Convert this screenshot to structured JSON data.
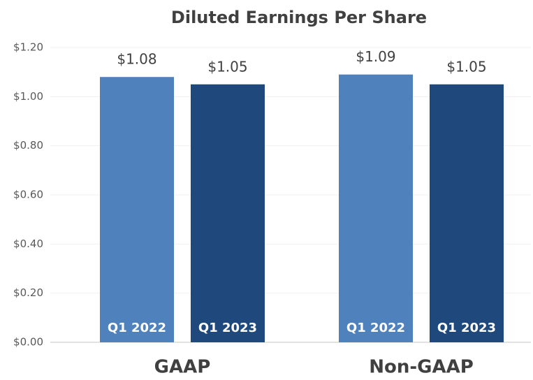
{
  "chart_data": {
    "type": "bar",
    "title": "Diluted Earnings Per Share",
    "categories": [
      "GAAP",
      "Non-GAAP"
    ],
    "series": [
      {
        "name": "Q1 2022",
        "color": "#4f81bd",
        "values": [
          1.08,
          1.09
        ],
        "value_labels": [
          "$1.08",
          "$1.09"
        ]
      },
      {
        "name": "Q1 2023",
        "color": "#1f497d",
        "values": [
          1.05,
          1.05
        ],
        "value_labels": [
          "$1.05",
          "$1.05"
        ]
      }
    ],
    "ylim": [
      0,
      1.2
    ],
    "yticks": [
      {
        "value": 0,
        "label": "$0.00"
      },
      {
        "value": 0.2,
        "label": "$0.20"
      },
      {
        "value": 0.4,
        "label": "$0.40"
      },
      {
        "value": 0.6,
        "label": "$0.60"
      },
      {
        "value": 0.8,
        "label": "$0.80"
      },
      {
        "value": 1.0,
        "label": "$1.00"
      },
      {
        "value": 1.2,
        "label": "$1.20"
      }
    ],
    "grid": true
  }
}
